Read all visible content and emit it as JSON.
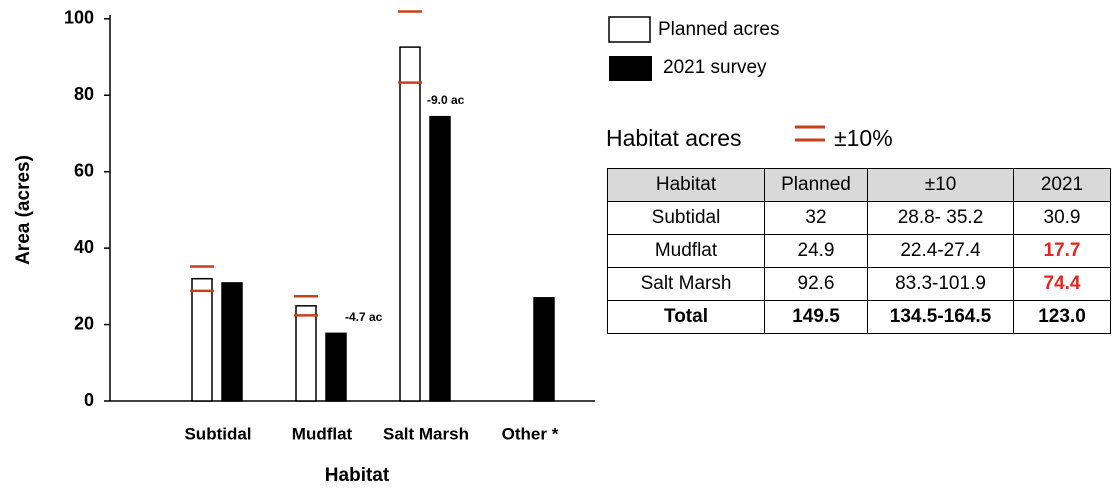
{
  "chart_data": {
    "type": "bar",
    "xlabel": "Habitat",
    "ylabel": "Area (acres)",
    "categories": [
      "Subtidal",
      "Mudflat",
      "Salt Marsh",
      "Other *"
    ],
    "series": [
      {
        "name": "Planned acres",
        "color": "#ffffff",
        "values": [
          32,
          24.9,
          92.6,
          null
        ]
      },
      {
        "name": "2021 survey",
        "color": "#000000",
        "values": [
          30.9,
          17.7,
          74.4,
          27
        ]
      }
    ],
    "range": {
      "name": "Habitat acres",
      "label": "±10%",
      "color": "#c8401a",
      "low": [
        28.8,
        22.4,
        83.3,
        null
      ],
      "high": [
        35.2,
        27.4,
        101.9,
        null
      ]
    },
    "annotations": [
      "-4.7 ac",
      "-9.0 ac"
    ],
    "ylim": [
      0,
      101
    ],
    "yticks": [
      0,
      20,
      40,
      60,
      80,
      100
    ],
    "grid": false
  },
  "table": {
    "header": [
      "Habitat",
      "Planned",
      "±10",
      "2021"
    ],
    "rows": [
      [
        "Subtidal",
        "32",
        "28.8- 35.2",
        "30.9"
      ],
      [
        "Mudflat",
        "24.9",
        "22.4-27.4",
        "17.7"
      ],
      [
        "Salt Marsh",
        "92.6",
        "83.3-101.9",
        "74.4"
      ],
      [
        "Total",
        "149.5",
        "134.5-164.5",
        "123.0"
      ]
    ]
  }
}
